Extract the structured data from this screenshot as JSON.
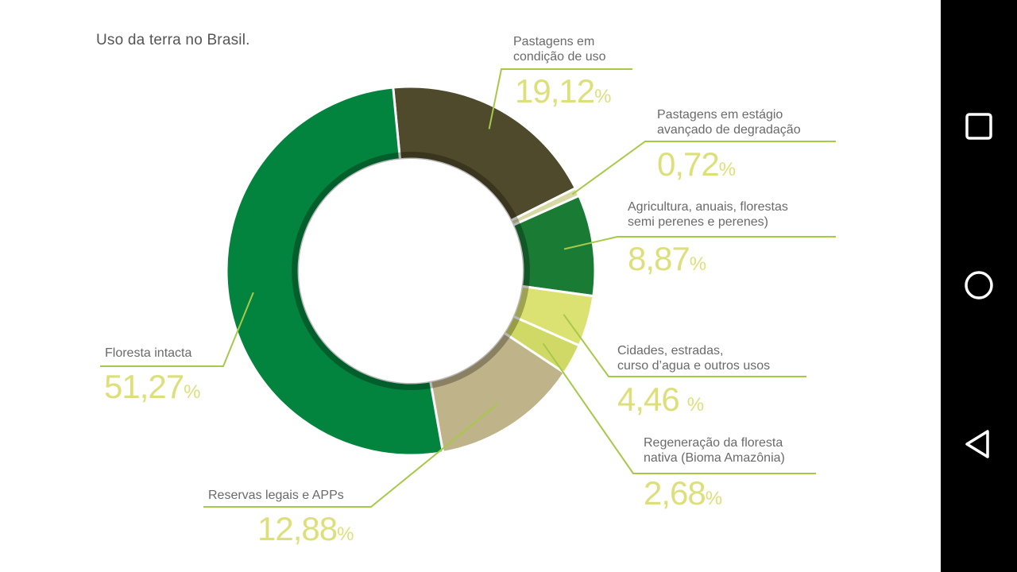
{
  "chart_data": {
    "type": "pie",
    "title": "Uso da terra no Brasil.",
    "unit": "%",
    "slices": [
      {
        "label_lines": [
          "Pastagens em",
          "condição de uso"
        ],
        "value": 19.12,
        "value_text": "19,12",
        "pct_text": "%",
        "color": "#4f4a2c"
      },
      {
        "label_lines": [
          "Pastagens em estágio",
          "avançado de degradação"
        ],
        "value": 0.72,
        "value_text": "0,72",
        "pct_text": "%",
        "color": "#d6d9a3"
      },
      {
        "label_lines": [
          "Agricultura, anuais, florestas",
          "semi perenes e perenes)"
        ],
        "value": 8.87,
        "value_text": "8,87",
        "pct_text": "%",
        "color": "#1a7b35"
      },
      {
        "label_lines": [
          "Cidades, estradas,",
          "curso d’agua e outros usos"
        ],
        "value": 4.46,
        "value_text": "4,46",
        "pct_text": "%",
        "color": "#dce272"
      },
      {
        "label_lines": [
          "Regeneração da floresta",
          "nativa (Bioma Amazônia)"
        ],
        "value": 2.68,
        "value_text": "2,68",
        "pct_text": "%",
        "color": "#d1d966"
      },
      {
        "label_lines": [
          "Reservas legais e APPs"
        ],
        "value": 12.88,
        "value_text": "12,88",
        "pct_text": "%",
        "color": "#bfb38a"
      },
      {
        "label_lines": [
          "Floresta intacta"
        ],
        "value": 51.27,
        "value_text": "51,27",
        "pct_text": "%",
        "color": "#03843e"
      }
    ],
    "leader_color": "#a6c94a"
  },
  "navbar": {
    "background": "#000000",
    "buttons": [
      {
        "name": "recent-apps",
        "icon": "square-icon"
      },
      {
        "name": "home",
        "icon": "circle-icon"
      },
      {
        "name": "back",
        "icon": "triangle-back-icon"
      }
    ]
  }
}
